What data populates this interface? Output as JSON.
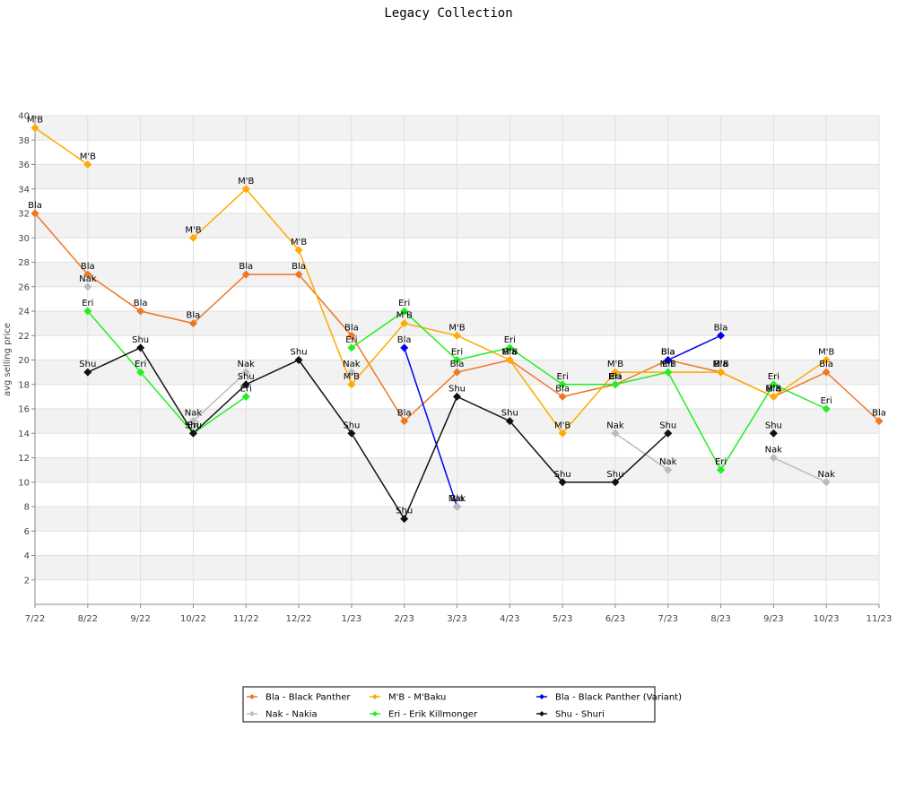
{
  "chart_data": {
    "type": "line",
    "title": "Legacy Collection",
    "ylabel": "avg selling price",
    "xlabel": "",
    "ylim": [
      0,
      40
    ],
    "yticks": [
      2,
      4,
      6,
      8,
      10,
      12,
      14,
      16,
      18,
      20,
      22,
      24,
      26,
      28,
      30,
      32,
      34,
      36,
      38,
      40
    ],
    "categories": [
      "7/22",
      "8/22",
      "9/22",
      "10/22",
      "11/22",
      "12/22",
      "1/23",
      "2/23",
      "3/23",
      "4/23",
      "5/23",
      "6/23",
      "7/23",
      "8/23",
      "9/23",
      "10/23",
      "11/23"
    ],
    "grid": true,
    "legend_position": "bottom",
    "series": [
      {
        "name": "Bla - Black Panther",
        "short": "Bla",
        "color": "#ee7722",
        "values": [
          32,
          27,
          24,
          23,
          27,
          27,
          22,
          15,
          19,
          20,
          17,
          18,
          20,
          19,
          17,
          19,
          15
        ]
      },
      {
        "name": "M'B - M'Baku",
        "short": "M'B",
        "color": "#ffaa00",
        "values": [
          39,
          36,
          null,
          30,
          34,
          29,
          18,
          23,
          22,
          20,
          14,
          19,
          19,
          19,
          17,
          20,
          null
        ]
      },
      {
        "name": "Bla - Black Panther (Variant)",
        "short": "Bla",
        "color": "#0000ee",
        "values": [
          null,
          null,
          null,
          null,
          null,
          null,
          null,
          21,
          8,
          null,
          null,
          null,
          20,
          22,
          null,
          null,
          null
        ]
      },
      {
        "name": "Nak - Nakia",
        "short": "Nak",
        "color": "#bbbbbb",
        "values": [
          null,
          26,
          null,
          15,
          19,
          null,
          19,
          null,
          8,
          null,
          null,
          14,
          11,
          null,
          12,
          10,
          null
        ]
      },
      {
        "name": "Eri - Erik Killmonger",
        "short": "Eri",
        "color": "#22ee22",
        "values": [
          null,
          24,
          19,
          14,
          17,
          null,
          21,
          24,
          20,
          21,
          18,
          18,
          19,
          11,
          18,
          16,
          null
        ]
      },
      {
        "name": "Shu - Shuri",
        "short": "Shu",
        "color": "#111111",
        "values": [
          null,
          19,
          21,
          14,
          18,
          20,
          14,
          7,
          17,
          15,
          10,
          10,
          14,
          null,
          14,
          null,
          null
        ]
      }
    ]
  }
}
